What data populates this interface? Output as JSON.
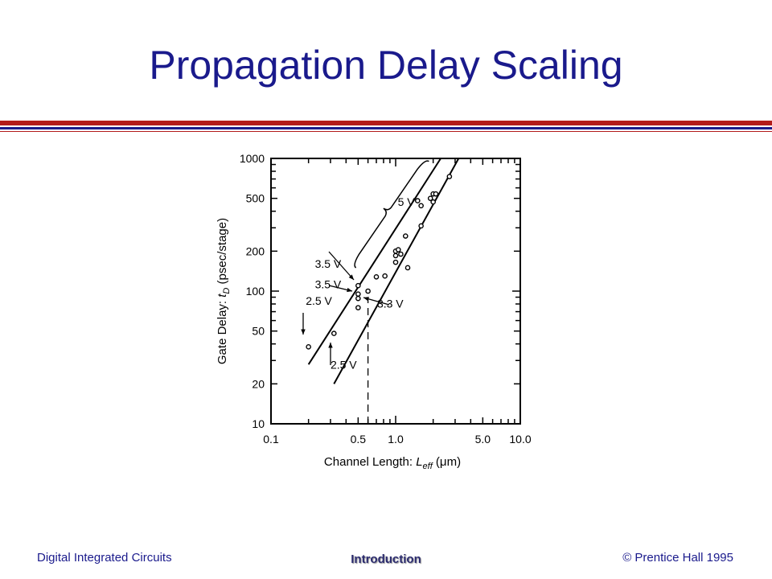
{
  "slide": {
    "title": "Propagation Delay Scaling",
    "footer_left": "Digital Integrated Circuits",
    "footer_center": "Introduction",
    "footer_right": "© Prentice Hall 1995"
  },
  "colors": {
    "title": "#1a1a8c",
    "rule_red": "#b31b1b",
    "rule_blue": "#1a1a8c"
  },
  "chart_data": {
    "type": "scatter",
    "x_scale": "log",
    "y_scale": "log",
    "xlim": [
      0.1,
      10.0
    ],
    "ylim": [
      10,
      1000
    ],
    "grid": false,
    "xlabel": "Channel Length: L_eff (μm)",
    "xlabel_parts": {
      "pre": "Channel Length: ",
      "var": "L",
      "sub": "eff",
      "post": " (μm)"
    },
    "ylabel": "Gate Delay: t_D (psec/stage)",
    "ylabel_parts": {
      "pre": "Gate Delay: ",
      "var": "t",
      "sub": "D",
      "post": " (psec/stage)"
    },
    "x_tick_labels": [
      {
        "value": 0.1,
        "label": "0.1"
      },
      {
        "value": 0.5,
        "label": "0.5"
      },
      {
        "value": 1.0,
        "label": "1.0"
      },
      {
        "value": 5.0,
        "label": "5.0"
      },
      {
        "value": 10.0,
        "label": "10.0"
      }
    ],
    "y_tick_labels": [
      {
        "value": 10,
        "label": "10"
      },
      {
        "value": 20,
        "label": "20"
      },
      {
        "value": 50,
        "label": "50"
      },
      {
        "value": 100,
        "label": "100"
      },
      {
        "value": 200,
        "label": "200"
      },
      {
        "value": 500,
        "label": "500"
      },
      {
        "value": 1000,
        "label": "1000"
      }
    ],
    "points": [
      {
        "x": 0.2,
        "y": 38
      },
      {
        "x": 0.32,
        "y": 48
      },
      {
        "x": 0.5,
        "y": 110
      },
      {
        "x": 0.5,
        "y": 95
      },
      {
        "x": 0.5,
        "y": 88
      },
      {
        "x": 0.5,
        "y": 75
      },
      {
        "x": 0.6,
        "y": 100
      },
      {
        "x": 0.7,
        "y": 128
      },
      {
        "x": 0.82,
        "y": 130
      },
      {
        "x": 1.0,
        "y": 200
      },
      {
        "x": 1.0,
        "y": 185
      },
      {
        "x": 1.0,
        "y": 165
      },
      {
        "x": 1.05,
        "y": 205
      },
      {
        "x": 1.1,
        "y": 190
      },
      {
        "x": 1.2,
        "y": 260
      },
      {
        "x": 1.25,
        "y": 150
      },
      {
        "x": 1.5,
        "y": 480
      },
      {
        "x": 1.6,
        "y": 440
      },
      {
        "x": 1.6,
        "y": 310
      },
      {
        "x": 1.9,
        "y": 500
      },
      {
        "x": 2.0,
        "y": 540
      },
      {
        "x": 2.0,
        "y": 470
      },
      {
        "x": 2.1,
        "y": 540
      },
      {
        "x": 2.7,
        "y": 730
      }
    ],
    "fit_lines": [
      {
        "x": [
          0.2,
          2.3
        ],
        "y": [
          28,
          1000
        ]
      },
      {
        "x": [
          0.32,
          3.2
        ],
        "y": [
          20,
          1000
        ]
      }
    ],
    "reference_line": {
      "x": 0.6,
      "y": [
        10,
        90
      ]
    },
    "annotations": [
      {
        "label": "5 V",
        "x": 1.04,
        "y": 440
      },
      {
        "label": "3.5 V",
        "x": 0.225,
        "y": 150
      },
      {
        "label": "3.5 V",
        "x": 0.225,
        "y": 105
      },
      {
        "label": "2.5 V",
        "x": 0.19,
        "y": 79
      },
      {
        "label": "3.3 V",
        "x": 0.71,
        "y": 75
      },
      {
        "label": "2.5 V",
        "x": 0.3,
        "y": 26
      }
    ]
  }
}
